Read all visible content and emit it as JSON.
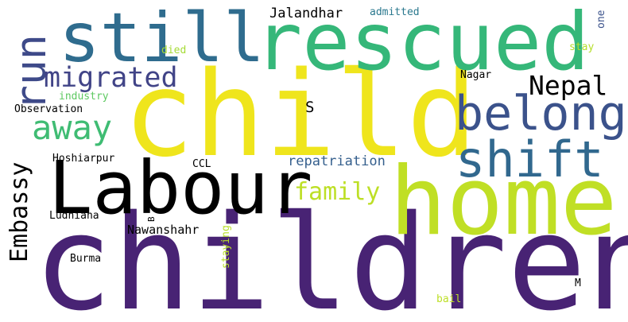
{
  "words": [
    {
      "id": "children",
      "text": "children",
      "color": "#482374"
    },
    {
      "id": "child",
      "text": "child",
      "color": "#efe51c"
    },
    {
      "id": "home",
      "text": "home",
      "color": "#c0df25"
    },
    {
      "id": "labour",
      "text": "Labour",
      "color": "#472878"
    },
    {
      "id": "rescued",
      "text": "rescued",
      "color": "#35b779"
    },
    {
      "id": "still",
      "text": "still",
      "color": "#2f6c8e"
    },
    {
      "id": "belong",
      "text": "belong",
      "color": "#3b528b"
    },
    {
      "id": "shift",
      "text": "shift",
      "color": "#31688e"
    },
    {
      "id": "run",
      "text": "run",
      "color": "#3e4a89"
    },
    {
      "id": "away",
      "text": "away",
      "color": "#3fbc73"
    },
    {
      "id": "migrated",
      "text": "migrated",
      "color": "#414487"
    },
    {
      "id": "nepal",
      "text": "Nepal",
      "color": "#44bf70"
    },
    {
      "id": "embassy",
      "text": "Embassy",
      "color": "#22a884"
    },
    {
      "id": "family",
      "text": "family",
      "color": "#bddf26"
    },
    {
      "id": "repatriation",
      "text": "repatriation",
      "color": "#355f8d"
    },
    {
      "id": "jalandhar",
      "text": "Jalandhar",
      "color": "#3b528b"
    },
    {
      "id": "nawanshahr",
      "text": "Nawanshahr",
      "color": "#440154"
    },
    {
      "id": "s",
      "text": "S",
      "color": "#440154"
    },
    {
      "id": "observation",
      "text": "Observation",
      "color": "#2c728e"
    },
    {
      "id": "industry",
      "text": "industry",
      "color": "#5ec962"
    },
    {
      "id": "hoshiarpur",
      "text": "Hoshiarpur",
      "color": "#c2df23"
    },
    {
      "id": "ludhiana",
      "text": "Ludhiana",
      "color": "#22a884"
    },
    {
      "id": "burma",
      "text": "Burma",
      "color": "#9bd93c"
    },
    {
      "id": "ccl",
      "text": "CCL",
      "color": "#3e4a89"
    },
    {
      "id": "admitted",
      "text": "admitted",
      "color": "#2a788e"
    },
    {
      "id": "died",
      "text": "died",
      "color": "#a5db36"
    },
    {
      "id": "nagar",
      "text": "Nagar",
      "color": "#3e4989"
    },
    {
      "id": "stay",
      "text": "stay",
      "color": "#b5de2b"
    },
    {
      "id": "one",
      "text": "one",
      "color": "#3b528b"
    },
    {
      "id": "staying",
      "text": "staying",
      "color": "#b8de29"
    },
    {
      "id": "b",
      "text": "B",
      "color": "#c8e020"
    },
    {
      "id": "m",
      "text": "M",
      "color": "#7ad151"
    },
    {
      "id": "bail",
      "text": "bail",
      "color": "#bddf26"
    }
  ]
}
